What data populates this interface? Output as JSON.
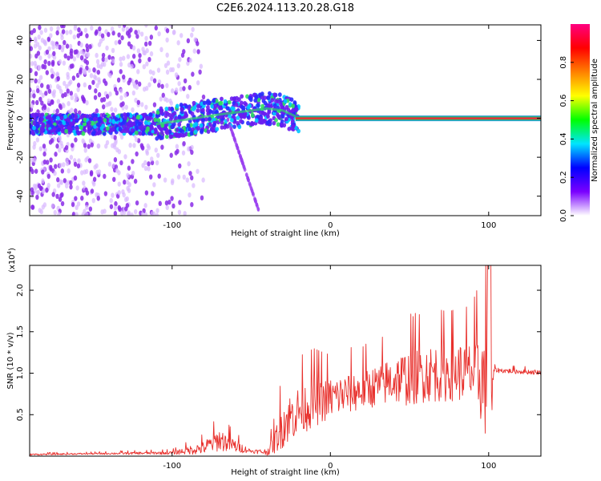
{
  "title": "C2E6.2024.113.20.28.G18",
  "chart_data": [
    {
      "type": "heatmap",
      "name": "spectrogram",
      "xlabel": "Height of straight line (km)",
      "ylabel": "Frequency (Hz)",
      "xlim": [
        -190,
        133
      ],
      "ylim": [
        -50,
        48
      ],
      "xticks": [
        -100,
        0,
        100
      ],
      "xtick_labels": [
        "-100",
        "0",
        "100"
      ],
      "yticks": [
        -40,
        -20,
        0,
        20,
        40
      ],
      "ytick_labels": [
        "-40",
        "-20",
        "0",
        "20",
        "40"
      ],
      "signal_line": {
        "description": "main spectral line near 0 Hz",
        "segments": [
          {
            "x": [
              -110,
              -70,
              -50,
              -40,
              -30,
              -22
            ],
            "y": [
              -3,
              2,
              4,
              5,
              4,
              1
            ]
          },
          {
            "x": [
              -22,
              133
            ],
            "y": [
              0,
              0
            ]
          }
        ]
      },
      "colorbar": {
        "label": "Normalized spectral amplitude",
        "range": [
          0,
          1
        ],
        "ticks": [
          0.0,
          0.2,
          0.4,
          0.6,
          0.8
        ],
        "tick_labels": [
          "0.0",
          "0.2",
          "0.4",
          "0.6",
          "0.8"
        ],
        "colors": [
          "#ffffff",
          "#7a00ff",
          "#0000ff",
          "#00e5ff",
          "#00ff00",
          "#ffff00",
          "#ff8000",
          "#ff0000",
          "#ff0080"
        ]
      }
    },
    {
      "type": "line",
      "name": "snr",
      "xlabel": "Height of straight line (km)",
      "ylabel": "SNR (10 * v/v)",
      "yscale_label": "(x10",
      "yscale_exp": "4",
      "xlim": [
        -190,
        133
      ],
      "ylim": [
        0,
        2.3
      ],
      "xticks": [
        -100,
        0,
        100
      ],
      "xtick_labels": [
        "-100",
        "0",
        "100"
      ],
      "yticks": [
        0.5,
        1.0,
        1.5,
        2.0
      ],
      "ytick_labels": [
        "0.5",
        "1.0",
        "1.5",
        "2.0"
      ],
      "color": "#e8302c",
      "envelope": {
        "x": [
          -190,
          -150,
          -100,
          -80,
          -70,
          -60,
          -50,
          -40,
          -35,
          -30,
          -20,
          -10,
          0,
          10,
          20,
          30,
          40,
          50,
          60,
          70,
          80,
          90,
          95,
          98,
          100,
          102,
          103,
          110,
          120,
          133
        ],
        "base": [
          0.02,
          0.03,
          0.04,
          0.1,
          0.2,
          0.12,
          0.06,
          0.05,
          0.18,
          0.4,
          0.55,
          0.65,
          0.7,
          0.75,
          0.8,
          0.85,
          0.92,
          0.95,
          1.0,
          1.0,
          1.02,
          1.0,
          0.95,
          0.9,
          0.5,
          0.3,
          1.04,
          1.03,
          1.02,
          1.01
        ],
        "amp": [
          0.01,
          0.01,
          0.02,
          0.08,
          0.14,
          0.08,
          0.02,
          0.04,
          0.15,
          0.3,
          0.3,
          0.3,
          0.25,
          0.25,
          0.25,
          0.25,
          0.3,
          0.35,
          0.35,
          0.35,
          0.35,
          0.4,
          0.55,
          0.7,
          0.9,
          0.6,
          0.03,
          0.03,
          0.03,
          0.03
        ]
      }
    }
  ]
}
